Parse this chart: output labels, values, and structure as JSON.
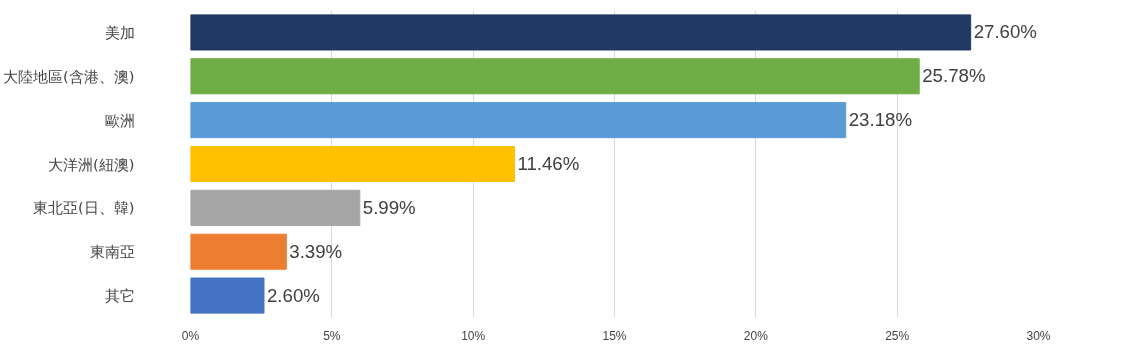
{
  "chart_data": {
    "type": "bar",
    "orientation": "horizontal",
    "categories": [
      "美加",
      "大陸地區(含港、澳)",
      "歐洲",
      "大洋洲(紐澳)",
      "東北亞(日、韓)",
      "東南亞",
      "其它"
    ],
    "values": [
      27.6,
      25.78,
      23.18,
      11.46,
      5.99,
      3.39,
      2.6
    ],
    "colors": [
      "#203864",
      "#70ad47",
      "#5b9bd5",
      "#ffc000",
      "#a5a5a5",
      "#ed7d31",
      "#4472c4"
    ],
    "value_labels": [
      "27.60%",
      "25.78%",
      "23.18%",
      "11.46%",
      "5.99%",
      "3.39%",
      "2.60%"
    ],
    "xlim": [
      0,
      30
    ],
    "xticks": [
      {
        "value": 0,
        "label": "0%"
      },
      {
        "value": 5,
        "label": "5%"
      },
      {
        "value": 10,
        "label": "10%"
      },
      {
        "value": 15,
        "label": "15%"
      },
      {
        "value": 20,
        "label": "20%"
      },
      {
        "value": 25,
        "label": "25%"
      },
      {
        "value": 30,
        "label": "30%"
      }
    ],
    "grid": "x"
  }
}
